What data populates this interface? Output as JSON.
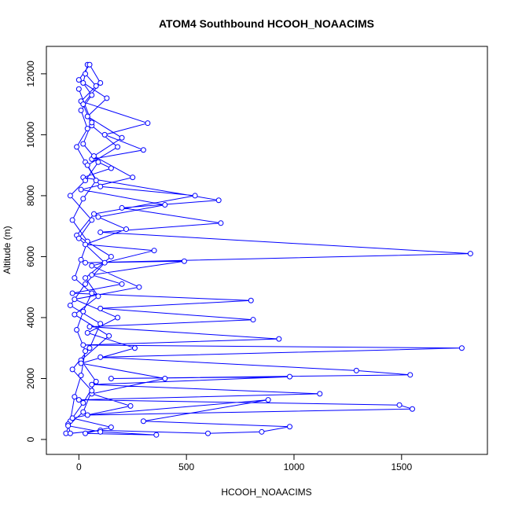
{
  "chart_data": {
    "type": "line",
    "markers": true,
    "color": "#0000ff",
    "title": "ATOM4 Southbound HCOOH_NOAACIMS",
    "xlabel": "HCOOH_NOAACIMS",
    "ylabel": "Altitude (m)",
    "xlim": [
      -151,
      1899
    ],
    "ylim": [
      -490,
      12900
    ],
    "xticks": [
      0,
      500,
      1000,
      1500
    ],
    "yticks": [
      0,
      2000,
      4000,
      6000,
      8000,
      10000,
      12000
    ],
    "x": [
      -60,
      -40,
      -20,
      10,
      30,
      -10,
      20,
      60,
      -20,
      10,
      40,
      -30,
      20,
      80,
      30,
      -10,
      40,
      10,
      60,
      20,
      40,
      30,
      80,
      10,
      320,
      120,
      300,
      60,
      150,
      20,
      650,
      200,
      660,
      100,
      1820,
      30,
      490,
      60,
      200,
      -30,
      800,
      100,
      810,
      50,
      930,
      20,
      1780,
      100,
      1290,
      1540,
      150,
      980,
      60,
      1120,
      0,
      1490,
      1550,
      40,
      880,
      300,
      980,
      850,
      600,
      100,
      -40,
      -50,
      20,
      80,
      10,
      140,
      -20,
      90,
      30,
      150,
      -10,
      70,
      540,
      100,
      40,
      180,
      60,
      20,
      100,
      50,
      0,
      130,
      40,
      200,
      70,
      250,
      10,
      400,
      90,
      220,
      30,
      350,
      60,
      280,
      -20,
      180,
      40,
      260,
      10,
      400,
      60,
      240,
      -30,
      150,
      30,
      360,
      100,
      -50,
      20,
      60,
      -30,
      50,
      100,
      -40,
      30,
      120,
      0,
      60,
      -40,
      30,
      90,
      20,
      60,
      0
    ],
    "values": [
      200,
      600,
      1400,
      2100,
      2900,
      3600,
      4200,
      4800,
      5300,
      5900,
      6500,
      7200,
      7900,
      8500,
      9100,
      9600,
      10200,
      10800,
      11300,
      11700,
      12300,
      12000,
      11600,
      11100,
      10380,
      10000,
      9500,
      9200,
      8900,
      8600,
      7850,
      7600,
      7100,
      6800,
      6100,
      5800,
      5850,
      5400,
      5100,
      4800,
      4560,
      4300,
      3930,
      3700,
      3300,
      3100,
      3000,
      2700,
      2260,
      2120,
      2000,
      2060,
      1800,
      1500,
      1300,
      1130,
      1000,
      800,
      1300,
      600,
      420,
      250,
      200,
      300,
      200,
      500,
      1200,
      1900,
      2600,
      3400,
      4100,
      4700,
      5300,
      6000,
      6700,
      7400,
      8000,
      8300,
      9000,
      9600,
      10300,
      11000,
      11700,
      12300,
      11800,
      11200,
      10600,
      9900,
      9300,
      8600,
      8200,
      7700,
      7300,
      6900,
      6400,
      6200,
      5700,
      5000,
      4600,
      4000,
      3500,
      3000,
      2500,
      2000,
      1500,
      1100,
      700,
      400,
      200,
      150,
      250,
      450,
      900,
      1600,
      2300,
      3000,
      3800,
      4400,
      5100,
      5800,
      6600,
      7200,
      8000,
      8500,
      9100,
      9700,
      10400,
      11500
    ]
  }
}
